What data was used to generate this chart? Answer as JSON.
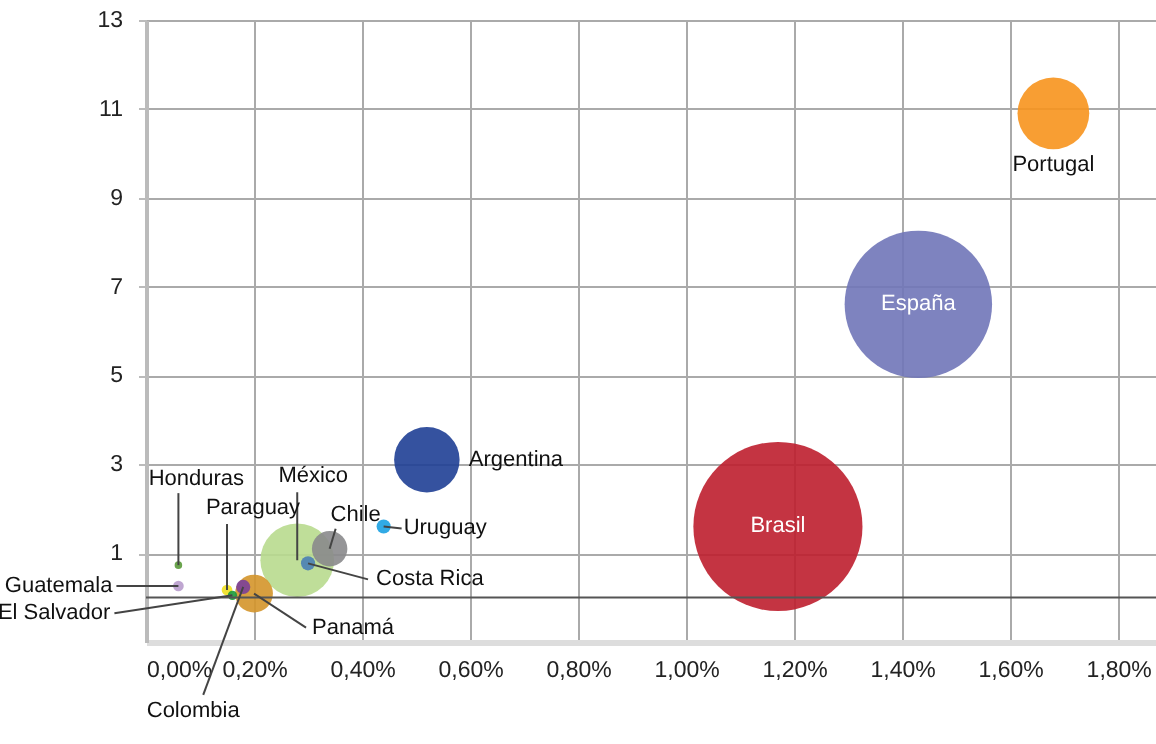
{
  "chart_data": {
    "type": "bubble",
    "xlim": [
      0,
      1.87
    ],
    "ylim": [
      -1,
      13
    ],
    "xticks": [
      {
        "value": 0,
        "label": "0,00%"
      },
      {
        "value": 0.2,
        "label": "0,20%"
      },
      {
        "value": 0.4,
        "label": "0,40%"
      },
      {
        "value": 0.6,
        "label": "0,60%"
      },
      {
        "value": 0.8,
        "label": "0,80%"
      },
      {
        "value": 1.0,
        "label": "1,00%"
      },
      {
        "value": 1.2,
        "label": "1,20%"
      },
      {
        "value": 1.4,
        "label": "1,40%"
      },
      {
        "value": 1.6,
        "label": "1,60%"
      },
      {
        "value": 1.8,
        "label": "1,80%"
      }
    ],
    "yticks": [
      1,
      3,
      5,
      7,
      9,
      11,
      13
    ],
    "grid": true,
    "ref_lines": [
      {
        "axis": "y",
        "value": 0,
        "color": "#555555"
      }
    ],
    "series": [
      {
        "name": "Brasil",
        "color": "#be1e2d",
        "x": [
          1.17
        ],
        "values": [
          1.6
        ],
        "sizes": [
          1
        ]
      },
      {
        "name": "España",
        "color": "#7075b8",
        "x": [
          1.43
        ],
        "values": [
          6.6
        ],
        "sizes": [
          0.76
        ]
      },
      {
        "name": "México",
        "color": "#b8da8e",
        "x": [
          0.28
        ],
        "values": [
          0.84
        ],
        "sizes": [
          0.19
        ]
      },
      {
        "name": "Portugal",
        "color": "#f7941d",
        "x": [
          1.68
        ],
        "values": [
          10.9
        ],
        "sizes": [
          0.18
        ]
      },
      {
        "name": "Argentina",
        "color": "#1f3f95",
        "x": [
          0.52
        ],
        "values": [
          3.1
        ],
        "sizes": [
          0.15
        ]
      },
      {
        "name": "Panamá",
        "color": "#d4952a",
        "x": [
          0.2
        ],
        "values": [
          0.09
        ],
        "sizes": [
          0.05
        ]
      },
      {
        "name": "Chile",
        "color": "#8a8a8c",
        "x": [
          0.34
        ],
        "values": [
          1.1
        ],
        "sizes": [
          0.044
        ]
      },
      {
        "name": "Uruguay",
        "color": "#1ba1e2",
        "x": [
          0.44
        ],
        "values": [
          1.6
        ],
        "sizes": [
          0.007
        ]
      },
      {
        "name": "Costa Rica",
        "color": "#4a7fb5",
        "x": [
          0.3
        ],
        "values": [
          0.77
        ],
        "sizes": [
          0.007
        ]
      },
      {
        "name": "Colombia",
        "color": "#7b3f99",
        "x": [
          0.18
        ],
        "values": [
          0.24
        ],
        "sizes": [
          0.007
        ]
      },
      {
        "name": "Paraguay",
        "color": "#f0e020",
        "x": [
          0.15
        ],
        "values": [
          0.17
        ],
        "sizes": [
          0.004
        ]
      },
      {
        "name": "Guatemala",
        "color": "#b89ccc",
        "x": [
          0.06
        ],
        "values": [
          0.26
        ],
        "sizes": [
          0.004
        ]
      },
      {
        "name": "El Salvador",
        "color": "#1a9a3a",
        "x": [
          0.16
        ],
        "values": [
          0.05
        ],
        "sizes": [
          0.003
        ]
      },
      {
        "name": "Honduras",
        "color": "#5a9a3a",
        "x": [
          0.06
        ],
        "values": [
          0.73
        ],
        "sizes": [
          0.002
        ]
      }
    ]
  }
}
